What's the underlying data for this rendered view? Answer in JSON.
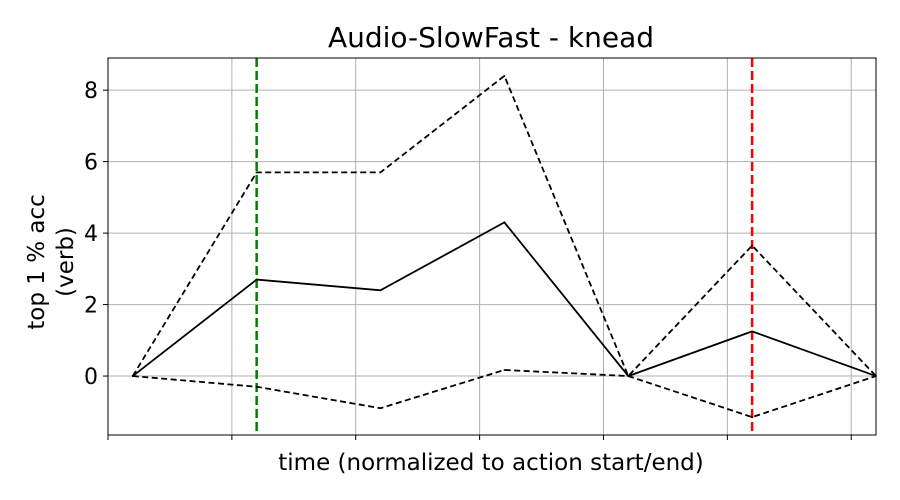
{
  "chart_data": {
    "type": "line",
    "title": "Audio-SlowFast - knead",
    "xlabel": "time (normalized to action start/end)",
    "ylabel_line1": "top 1 % acc",
    "ylabel_line2": "(verb)",
    "ylim": [
      -1.65,
      8.9
    ],
    "xlim": [
      -0.2,
      6.0
    ],
    "grid": true,
    "y_ticks": [
      0,
      2,
      4,
      6,
      8
    ],
    "y_tick_labels": [
      "0",
      "2",
      "4",
      "6",
      "8"
    ],
    "x_ticks": [
      -0.2,
      0.8,
      1.8,
      2.8,
      3.8,
      4.8,
      5.8
    ],
    "x": [
      0,
      1,
      2,
      3,
      4,
      5,
      6
    ],
    "series": [
      {
        "role": "mean",
        "style": "solid",
        "color": "#000000",
        "values": [
          0,
          2.7,
          2.4,
          4.3,
          0,
          1.25,
          0
        ]
      },
      {
        "role": "upper",
        "style": "dashed",
        "color": "#000000",
        "values": [
          0,
          5.7,
          5.7,
          8.4,
          0,
          3.65,
          0
        ]
      },
      {
        "role": "lower",
        "style": "dashed",
        "color": "#000000",
        "values": [
          0,
          -0.3,
          -0.9,
          0.17,
          0,
          -1.15,
          0
        ]
      }
    ],
    "markers": [
      {
        "name": "action-start",
        "x": 1,
        "color": "#008000",
        "style": "dashed"
      },
      {
        "name": "action-end",
        "x": 5,
        "color": "#ff0000",
        "style": "dashed"
      }
    ]
  }
}
